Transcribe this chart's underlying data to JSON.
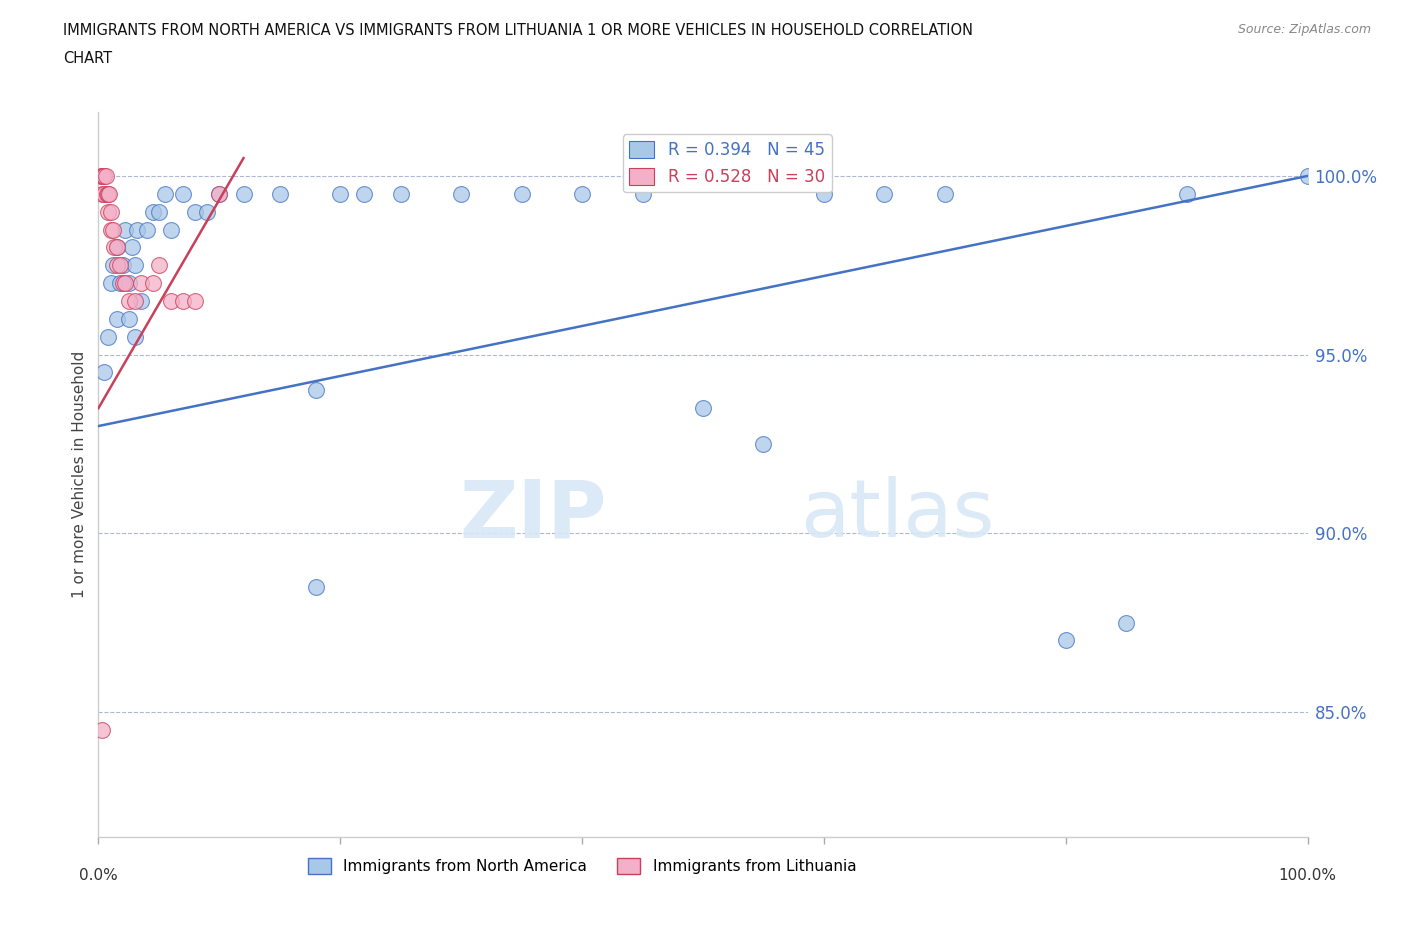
{
  "title_line1": "IMMIGRANTS FROM NORTH AMERICA VS IMMIGRANTS FROM LITHUANIA 1 OR MORE VEHICLES IN HOUSEHOLD CORRELATION",
  "title_line2": "CHART",
  "source": "Source: ZipAtlas.com",
  "ylabel": "1 or more Vehicles in Household",
  "ytick_values": [
    100.0,
    95.0,
    90.0,
    85.0
  ],
  "xmin": 0.0,
  "xmax": 100.0,
  "ymin": 81.5,
  "ymax": 101.8,
  "blue_label": "Immigrants from North America",
  "pink_label": "Immigrants from Lithuania",
  "blue_R": 0.394,
  "blue_N": 45,
  "pink_R": 0.528,
  "pink_N": 30,
  "blue_color": "#a8c8e8",
  "pink_color": "#f4b0c8",
  "blue_line_color": "#4472c4",
  "pink_line_color": "#c8405a",
  "blue_x": [
    0.5,
    0.8,
    1.0,
    1.2,
    1.5,
    1.8,
    2.0,
    2.2,
    2.5,
    2.8,
    3.0,
    3.2,
    3.5,
    4.0,
    4.5,
    5.0,
    5.5,
    6.0,
    7.0,
    8.0,
    9.0,
    10.0,
    12.0,
    15.0,
    18.0,
    20.0,
    22.0,
    25.0,
    30.0,
    35.0,
    40.0,
    45.0,
    50.0,
    55.0,
    60.0,
    65.0,
    70.0,
    80.0,
    85.0,
    90.0,
    1.5,
    2.5,
    3.0,
    18.0,
    100.0
  ],
  "blue_y": [
    94.5,
    95.5,
    97.0,
    97.5,
    98.0,
    97.0,
    97.5,
    98.5,
    97.0,
    98.0,
    97.5,
    98.5,
    96.5,
    98.5,
    99.0,
    99.0,
    99.5,
    98.5,
    99.5,
    99.0,
    99.0,
    99.5,
    99.5,
    99.5,
    94.0,
    99.5,
    99.5,
    99.5,
    99.5,
    99.5,
    99.5,
    99.5,
    93.5,
    92.5,
    99.5,
    99.5,
    99.5,
    87.0,
    87.5,
    99.5,
    96.0,
    96.0,
    95.5,
    88.5,
    100.0
  ],
  "pink_x": [
    0.2,
    0.3,
    0.3,
    0.4,
    0.5,
    0.5,
    0.6,
    0.7,
    0.8,
    0.8,
    0.9,
    1.0,
    1.0,
    1.2,
    1.3,
    1.5,
    1.5,
    1.8,
    2.0,
    2.2,
    2.5,
    3.0,
    3.5,
    4.5,
    5.0,
    6.0,
    7.0,
    8.0,
    10.0,
    0.3
  ],
  "pink_y": [
    100.0,
    100.0,
    99.5,
    100.0,
    100.0,
    99.5,
    100.0,
    99.5,
    99.5,
    99.0,
    99.5,
    99.0,
    98.5,
    98.5,
    98.0,
    98.0,
    97.5,
    97.5,
    97.0,
    97.0,
    96.5,
    96.5,
    97.0,
    97.0,
    97.5,
    96.5,
    96.5,
    96.5,
    99.5,
    84.5
  ],
  "blue_trend_x": [
    0.0,
    100.0
  ],
  "blue_trend_y": [
    93.0,
    100.0
  ],
  "pink_trend_x": [
    0.0,
    12.0
  ],
  "pink_trend_y": [
    93.5,
    100.5
  ]
}
